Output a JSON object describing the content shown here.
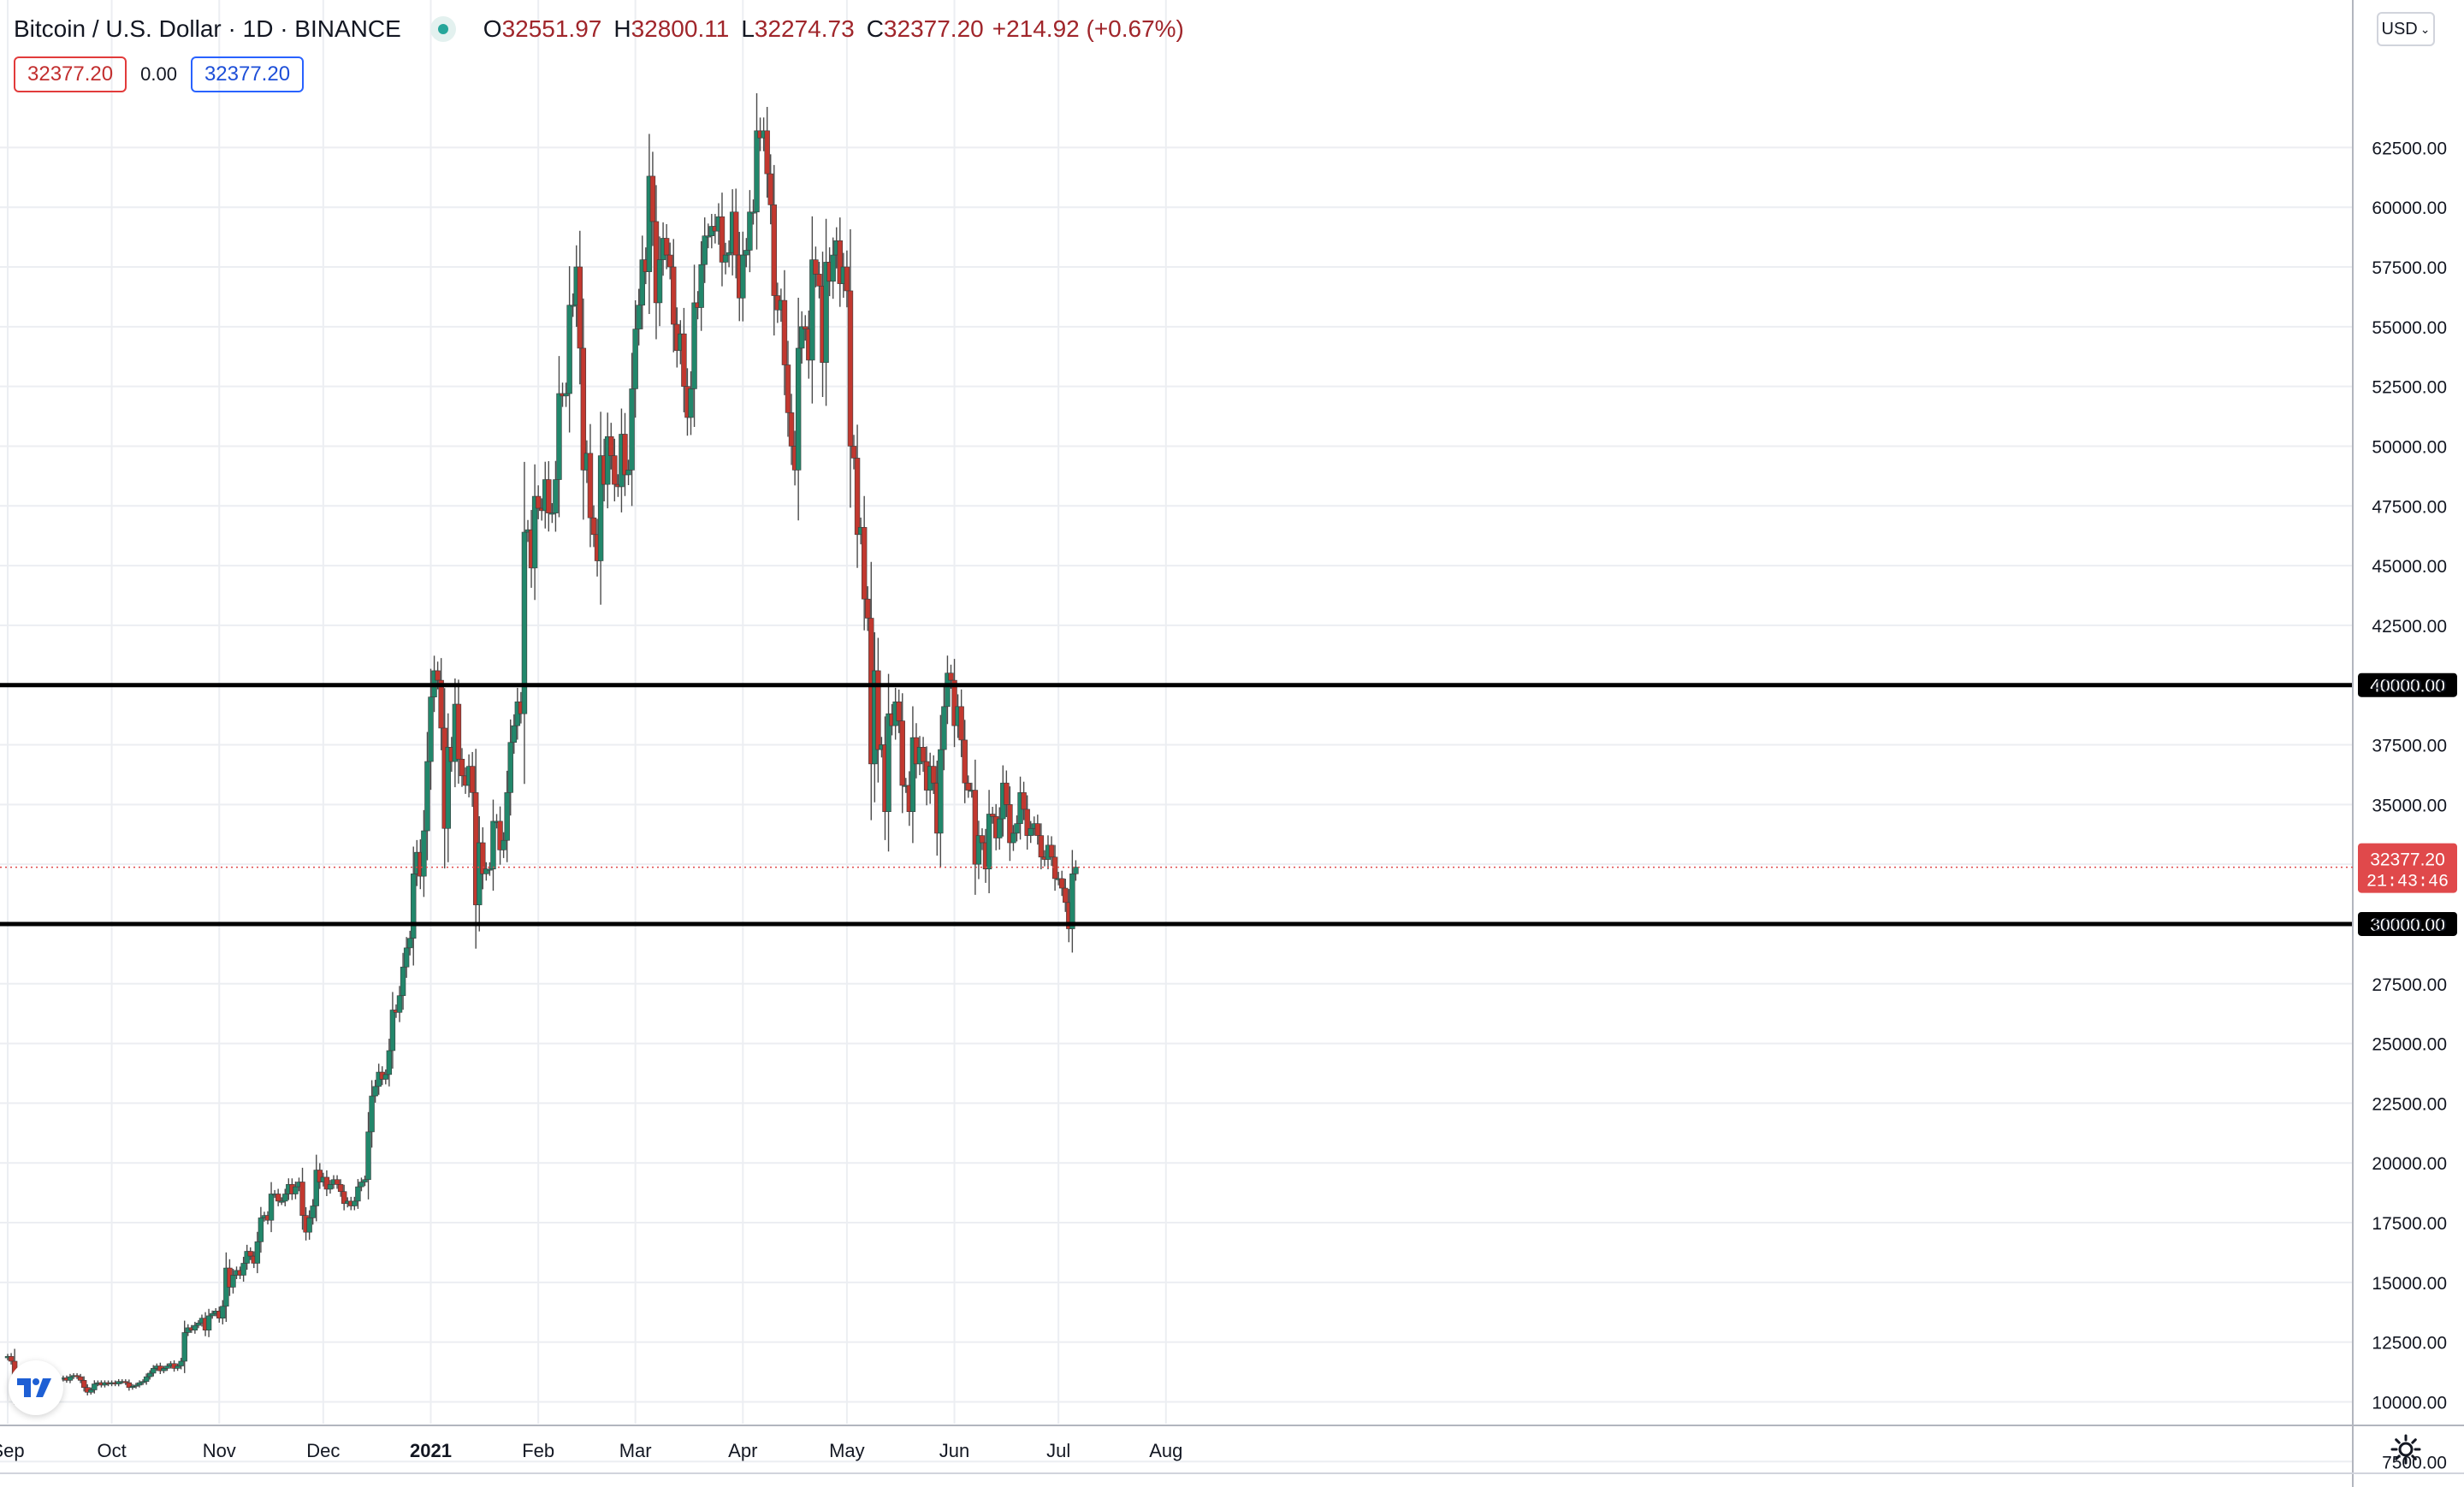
{
  "header": {
    "title": "Bitcoin / U.S. Dollar · 1D · BINANCE",
    "open_label": "O",
    "open": "32551.97",
    "high_label": "H",
    "high": "32800.11",
    "low_label": "L",
    "low": "32274.73",
    "close_label": "C",
    "close": "32377.20",
    "change": "+214.92 (+0.67%)"
  },
  "order_row": {
    "sell": "32377.20",
    "spread": "0.00",
    "buy": "32377.20"
  },
  "currency_selector": {
    "label": "USD",
    "icon": "chevron-down-icon"
  },
  "price_label": {
    "price": "32377.20",
    "countdown": "21:43:46"
  },
  "colors": {
    "up": "#22876b",
    "down": "#c2382f",
    "wick": "#4a4a4a",
    "price_tag": "#e0494b"
  },
  "chart_data": {
    "type": "candlestick",
    "y_axis": {
      "range": [
        6000,
        66000
      ],
      "ticks": [
        7500,
        10000,
        12500,
        15000,
        17500,
        20000,
        22500,
        25000,
        27500,
        30000,
        32500,
        35000,
        37500,
        40000,
        42500,
        45000,
        47500,
        50000,
        52500,
        55000,
        57500,
        60000,
        62500
      ],
      "tick_labels": [
        "7500.00",
        "10000.00",
        "12500.00",
        "15000.00",
        "17500.00",
        "20000.00",
        "22500.00",
        "25000.00",
        "27500.00",
        "30000.00",
        "32500.00",
        "35000.00",
        "37500.00",
        "40000.00",
        "42500.00",
        "45000.00",
        "47500.00",
        "50000.00",
        "52500.00",
        "55000.00",
        "57500.00",
        "60000.00",
        "62500.00"
      ]
    },
    "x_axis": {
      "labels": [
        {
          "label": "Sep",
          "day": 0
        },
        {
          "label": "Oct",
          "day": 30
        },
        {
          "label": "Nov",
          "day": 61
        },
        {
          "label": "Dec",
          "day": 91
        },
        {
          "label": "2021",
          "day": 122
        },
        {
          "label": "Feb",
          "day": 153
        },
        {
          "label": "Mar",
          "day": 181
        },
        {
          "label": "Apr",
          "day": 212
        },
        {
          "label": "May",
          "day": 242
        },
        {
          "label": "Jun",
          "day": 273
        },
        {
          "label": "Jul",
          "day": 303
        },
        {
          "label": "Aug",
          "day": 334
        }
      ]
    },
    "horizontal_lines": [
      {
        "value": 40000,
        "label": "40000.00"
      },
      {
        "value": 30000,
        "label": "30000.00"
      }
    ],
    "current_price": 32377.2,
    "closes": [
      11900,
      11700,
      10400,
      10200,
      10300,
      10250,
      10100,
      10300,
      10350,
      10400,
      10450,
      10300,
      10600,
      10700,
      10750,
      10950,
      11000,
      10900,
      11050,
      11100,
      11050,
      10900,
      10600,
      10400,
      10500,
      10750,
      10800,
      10700,
      10800,
      10750,
      10800,
      10750,
      10850,
      10850,
      10800,
      10600,
      10650,
      10700,
      10800,
      10850,
      11050,
      11200,
      11400,
      11500,
      11300,
      11400,
      11500,
      11600,
      11400,
      11500,
      11700,
      12900,
      13100,
      13000,
      13200,
      13300,
      13500,
      13000,
      13600,
      13700,
      13800,
      13500,
      14000,
      15600,
      14800,
      15300,
      15500,
      15300,
      15800,
      16300,
      16100,
      15800,
      16700,
      17700,
      17800,
      17600,
      18700,
      18700,
      18400,
      18400,
      18700,
      19100,
      18700,
      19000,
      19200,
      17800,
      17100,
      17700,
      18200,
      19700,
      19200,
      19400,
      18900,
      19100,
      19300,
      19100,
      18800,
      18300,
      18400,
      18200,
      18400,
      19000,
      19200,
      19300,
      21300,
      22800,
      23200,
      23800,
      23500,
      23700,
      24700,
      26400,
      26300,
      27000,
      28200,
      29000,
      29400,
      32100,
      33000,
      32000,
      33900,
      36800,
      39500,
      40600,
      40200,
      38200,
      34000,
      37400,
      36800,
      39200,
      36900,
      36200,
      35800,
      36600,
      35500,
      30800,
      33400,
      32100,
      32300,
      32300,
      34300,
      34300,
      33100,
      33500,
      35500,
      37600,
      38300,
      39300,
      38800,
      46400,
      46500,
      44900,
      47900,
      47400,
      47300,
      48600,
      47200,
      47200,
      48600,
      52200,
      52100,
      52200,
      55900,
      55900,
      57500,
      54100,
      49000,
      49700,
      47000,
      46300,
      45200,
      49600,
      48400,
      50400,
      49600,
      48400,
      48300,
      50500,
      48800,
      49000,
      52400,
      54900,
      55900,
      57800,
      57300,
      61300,
      59400,
      56000,
      57800,
      58700,
      58000,
      57500,
      55100,
      54000,
      54700,
      52500,
      51200,
      52400,
      56000,
      55800,
      57600,
      58800,
      58800,
      59200,
      59000,
      59600,
      57700,
      58000,
      58100,
      59800,
      58000,
      56200,
      58000,
      58200,
      59800,
      59800,
      63200,
      62900,
      63200,
      61400,
      60100,
      56300,
      55700,
      56100,
      53400,
      51400,
      50000,
      49000,
      54100,
      55000,
      54900,
      53600,
      57800,
      57200,
      56700,
      53500,
      57700,
      56900,
      58000,
      58600,
      56800,
      57500,
      56500,
      50000,
      49500,
      46300,
      46600,
      43600,
      42800,
      36700,
      40600,
      37300,
      37500,
      34700,
      38800,
      38300,
      39300,
      38500,
      35800,
      35800,
      34700,
      37800,
      36700,
      37400,
      36800,
      35600,
      36600,
      35900,
      33800,
      37300,
      39100,
      40500,
      40200,
      38300,
      39100,
      37700,
      35900,
      35600,
      35600,
      32500,
      33700,
      33400,
      32300,
      34600,
      34500,
      33600,
      34400,
      35900,
      35000,
      33400,
      33800,
      34200,
      35500,
      34800,
      33700,
      34000,
      34200,
      33700,
      32800,
      32700,
      33300,
      32800,
      31900,
      31900,
      31500,
      30900,
      29800,
      32100,
      32377
    ]
  }
}
